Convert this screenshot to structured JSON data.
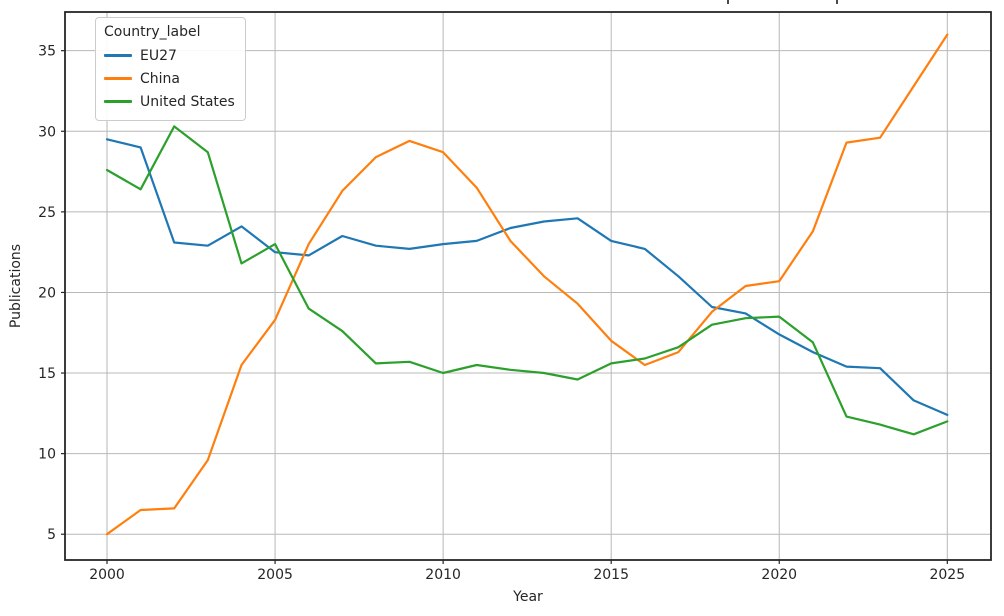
{
  "chart_data": {
    "type": "line",
    "x": [
      2000,
      2001,
      2002,
      2003,
      2004,
      2005,
      2006,
      2007,
      2008,
      2009,
      2010,
      2011,
      2012,
      2013,
      2014,
      2015,
      2016,
      2017,
      2018,
      2019,
      2020,
      2021,
      2022,
      2023,
      2024,
      2025
    ],
    "series": [
      {
        "name": "EU27",
        "color": "#1f77b4",
        "values": [
          29.5,
          29.0,
          23.1,
          22.9,
          24.1,
          22.5,
          22.3,
          23.5,
          22.9,
          22.7,
          23.0,
          23.2,
          24.0,
          24.4,
          24.6,
          23.2,
          22.7,
          21.0,
          19.1,
          18.7,
          17.4,
          16.3,
          15.4,
          15.3,
          13.3,
          12.4
        ]
      },
      {
        "name": "China",
        "color": "#ff7f0e",
        "values": [
          5.0,
          6.5,
          6.6,
          9.6,
          15.5,
          18.3,
          23.0,
          26.3,
          28.4,
          29.4,
          28.7,
          26.5,
          23.2,
          21.0,
          19.3,
          17.0,
          15.5,
          16.3,
          18.8,
          20.4,
          20.7,
          23.8,
          29.3,
          29.6,
          32.8,
          36.0
        ]
      },
      {
        "name": "United States",
        "color": "#2ca02c",
        "values": [
          27.6,
          26.4,
          30.3,
          28.7,
          21.8,
          23.0,
          19.0,
          17.6,
          15.6,
          15.7,
          15.0,
          15.5,
          15.2,
          15.0,
          14.6,
          15.6,
          15.9,
          16.6,
          18.0,
          18.4,
          18.5,
          16.9,
          12.3,
          11.8,
          11.2,
          12.0
        ]
      }
    ],
    "legend_title": "Country_label",
    "xlabel": "Year",
    "ylabel": "Publications",
    "xticks": [
      2000,
      2005,
      2010,
      2015,
      2020,
      2025
    ],
    "yticks": [
      5,
      10,
      15,
      20,
      25,
      30,
      35
    ],
    "xlim": [
      1998.75,
      2026.3
    ],
    "ylim": [
      3.4,
      37.4
    ],
    "grid": true,
    "legend_position": "upper left",
    "grid_color": "#b8b8b8",
    "spine_color": "#262626",
    "tick_label_color": "#262626"
  }
}
